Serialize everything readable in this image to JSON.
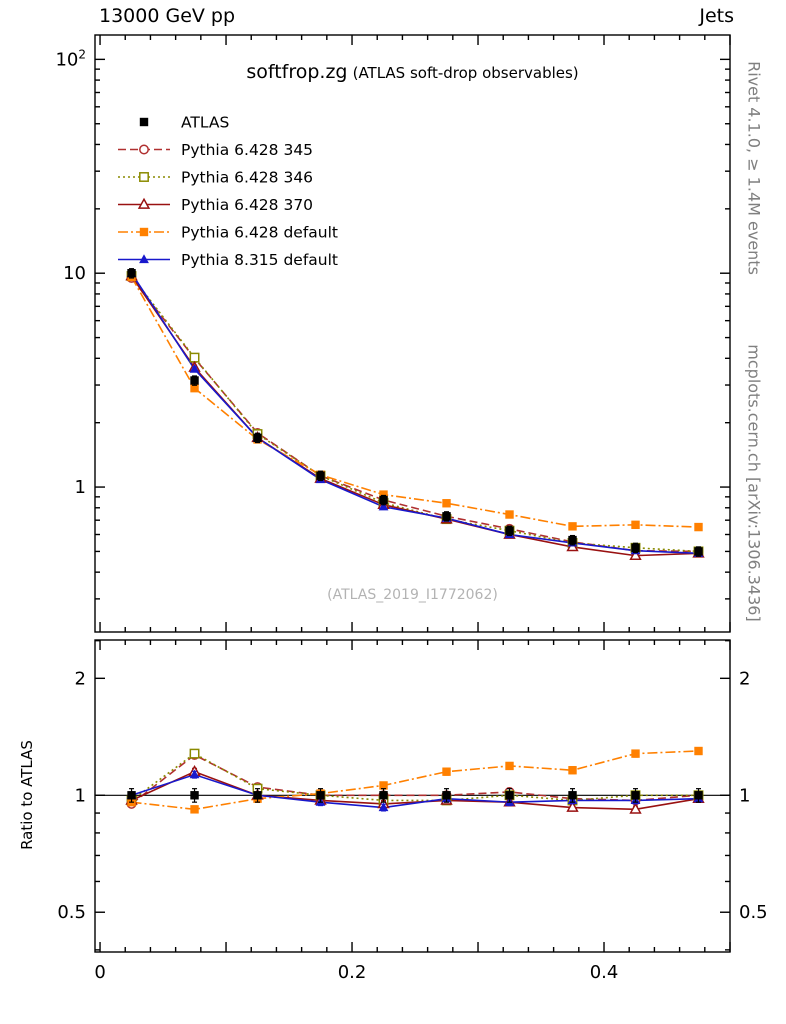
{
  "header": {
    "left": "13000 GeV pp",
    "right": "Jets"
  },
  "title": {
    "main": "softfrop.zg",
    "sub": "(ATLAS soft-drop observables)"
  },
  "watermark": "(ATLAS_2019_I1772062)",
  "side_labels": {
    "left": "Ratio to ATLAS",
    "right_top": "Rivet 4.1.0, ≥ 1.4M events",
    "right_bottom": "mcplots.cern.ch [arXiv:1306.3436]"
  },
  "chart_data": {
    "type": "line",
    "title": "softfrop.zg (ATLAS soft-drop observables)",
    "xlabel": "",
    "x": [
      0.025,
      0.075,
      0.125,
      0.175,
      0.225,
      0.275,
      0.325,
      0.375,
      0.425,
      0.475
    ],
    "xlim": [
      -0.004,
      0.5
    ],
    "x_major_ticks": [
      0,
      0.1,
      0.2,
      0.3,
      0.4,
      0.5
    ],
    "x_labeled_ticks": [
      0,
      0.2,
      0.4
    ],
    "x_minor_step": 0.02,
    "main_panel": {
      "scale": "log",
      "ylim": [
        0.21,
        130
      ],
      "y_major_ticks": [
        1,
        10,
        100
      ]
    },
    "ratio_panel": {
      "scale": "log",
      "ylim": [
        0.395,
        2.51
      ],
      "y_major_ticks": [
        0.5,
        1,
        2
      ],
      "y_minor_ticks": [
        0.4,
        0.6,
        0.7,
        0.8,
        0.9,
        2.5
      ],
      "ylabel": "Ratio to ATLAS",
      "reference_line": 1
    },
    "series": [
      {
        "name": "ATLAS",
        "color": "#000000",
        "marker": "square-filled",
        "line": "none",
        "err_frac": 0.05,
        "values": [
          10.0,
          3.15,
          1.7,
          1.13,
          0.87,
          0.73,
          0.625,
          0.565,
          0.52,
          0.5
        ],
        "ratio": [
          1.0,
          1.0,
          1.0,
          1.0,
          1.0,
          1.0,
          1.0,
          1.0,
          1.0,
          1.0
        ]
      },
      {
        "name": "Pythia 6.428 345",
        "color": "#b03030",
        "marker": "circle-open",
        "line": "dashed",
        "err_frac": 0.025,
        "values": [
          9.5,
          4.0,
          1.79,
          1.13,
          0.87,
          0.73,
          0.638,
          0.554,
          0.504,
          0.5
        ],
        "ratio": [
          0.95,
          1.27,
          1.05,
          1.0,
          1.0,
          1.0,
          1.02,
          0.98,
          0.97,
          1.0
        ]
      },
      {
        "name": "Pythia 6.428 346",
        "color": "#8a8a00",
        "marker": "square-open",
        "line": "dotted",
        "err_frac": 0.025,
        "values": [
          9.7,
          4.03,
          1.77,
          1.13,
          0.844,
          0.708,
          0.625,
          0.548,
          0.52,
          0.5
        ],
        "ratio": [
          0.97,
          1.28,
          1.04,
          1.0,
          0.97,
          0.97,
          1.0,
          0.97,
          1.0,
          1.0
        ]
      },
      {
        "name": "Pythia 6.428 370",
        "color": "#991111",
        "marker": "triangle-open",
        "line": "solid",
        "err_frac": 0.025,
        "values": [
          9.7,
          3.62,
          1.7,
          1.096,
          0.827,
          0.708,
          0.6,
          0.525,
          0.478,
          0.49
        ],
        "ratio": [
          0.97,
          1.15,
          1.0,
          0.97,
          0.95,
          0.97,
          0.96,
          0.93,
          0.92,
          0.98
        ]
      },
      {
        "name": "Pythia 6.428 default",
        "color": "#ff8000",
        "marker": "square-filled",
        "line": "dashdot",
        "err_frac": 0.025,
        "values": [
          9.6,
          2.9,
          1.67,
          1.141,
          0.922,
          0.84,
          0.744,
          0.655,
          0.666,
          0.65
        ],
        "ratio": [
          0.96,
          0.92,
          0.98,
          1.01,
          1.06,
          1.15,
          1.19,
          1.16,
          1.28,
          1.3
        ]
      },
      {
        "name": "Pythia 8.315 default",
        "color": "#1818cc",
        "marker": "triangle-filled",
        "line": "solid",
        "err_frac": 0.025,
        "values": [
          10.0,
          3.56,
          1.7,
          1.085,
          0.809,
          0.715,
          0.6,
          0.548,
          0.504,
          0.49
        ],
        "ratio": [
          1.0,
          1.13,
          1.0,
          0.96,
          0.93,
          0.98,
          0.96,
          0.97,
          0.97,
          0.98
        ]
      }
    ]
  }
}
